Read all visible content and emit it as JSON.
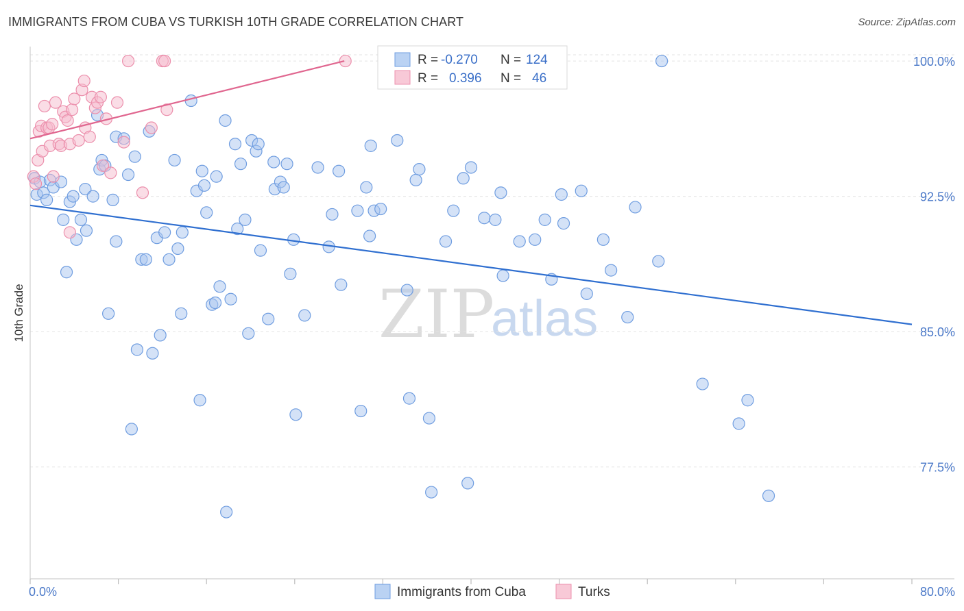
{
  "header": {
    "title": "IMMIGRANTS FROM CUBA VS TURKISH 10TH GRADE CORRELATION CHART",
    "source": "Source: ZipAtlas.com"
  },
  "watermark": {
    "zip": "ZIP",
    "atlas": "atlas"
  },
  "legend": {
    "cuba": {
      "r_label": "R =",
      "r_value": "-0.270",
      "n_label": "N =",
      "n_value": "124"
    },
    "turks": {
      "r_label": "R =",
      "r_value": "0.396",
      "n_label": "N =",
      "n_value": "46"
    }
  },
  "bottom_legend": {
    "cuba": "Immigrants from Cuba",
    "turks": "Turks"
  },
  "colors": {
    "cuba_fill": "#a9c6ef",
    "cuba_stroke": "#6f9de0",
    "cuba_line": "#2f6fd0",
    "turks_fill": "#f6bccd",
    "turks_stroke": "#ec8fac",
    "turks_line": "#e0668f",
    "grid": "#e3e3e3",
    "axis_label": "#4a78c8"
  },
  "chart_data": {
    "type": "scatter",
    "title": "IMMIGRANTS FROM CUBA VS TURKISH 10TH GRADE CORRELATION CHART",
    "xlabel": "",
    "ylabel": "10th Grade",
    "xlim": [
      0,
      80
    ],
    "ylim": [
      71.3,
      100.8
    ],
    "x_tick_labels": [
      "0.0%",
      "80.0%"
    ],
    "y_ticks": [
      77.5,
      85.0,
      92.5,
      100.0
    ],
    "y_tick_labels": [
      "77.5%",
      "85.0%",
      "92.5%",
      "100.0%"
    ],
    "grid": true,
    "series": [
      {
        "name": "Immigrants from Cuba",
        "r": -0.27,
        "n": 124,
        "trend": {
          "x": [
            0,
            80
          ],
          "y": [
            92.0,
            85.4
          ]
        },
        "points": [
          [
            0.4,
            93.5
          ],
          [
            0.6,
            92.6
          ],
          [
            0.9,
            93.3
          ],
          [
            1.2,
            92.7
          ],
          [
            1.5,
            92.3
          ],
          [
            1.8,
            93.4
          ],
          [
            2.1,
            93.0
          ],
          [
            2.8,
            93.3
          ],
          [
            3.0,
            91.2
          ],
          [
            3.3,
            88.3
          ],
          [
            3.6,
            92.2
          ],
          [
            3.9,
            92.5
          ],
          [
            4.2,
            90.1
          ],
          [
            4.6,
            91.2
          ],
          [
            5.0,
            92.9
          ],
          [
            5.1,
            90.6
          ],
          [
            5.7,
            92.5
          ],
          [
            6.1,
            97.0
          ],
          [
            6.3,
            94.0
          ],
          [
            6.5,
            94.5
          ],
          [
            6.8,
            94.2
          ],
          [
            7.1,
            86.0
          ],
          [
            7.5,
            92.3
          ],
          [
            7.8,
            95.8
          ],
          [
            7.8,
            90.0
          ],
          [
            8.5,
            95.7
          ],
          [
            8.9,
            93.7
          ],
          [
            9.2,
            79.6
          ],
          [
            9.5,
            94.7
          ],
          [
            9.7,
            84.0
          ],
          [
            10.1,
            89.0
          ],
          [
            10.5,
            89.0
          ],
          [
            10.8,
            96.1
          ],
          [
            11.1,
            83.8
          ],
          [
            11.5,
            90.2
          ],
          [
            11.8,
            84.8
          ],
          [
            12.2,
            90.5
          ],
          [
            12.6,
            89.0
          ],
          [
            13.1,
            94.5
          ],
          [
            13.4,
            89.6
          ],
          [
            13.7,
            86.0
          ],
          [
            13.8,
            90.5
          ],
          [
            14.6,
            97.8
          ],
          [
            15.1,
            92.8
          ],
          [
            15.4,
            81.2
          ],
          [
            15.6,
            93.9
          ],
          [
            15.8,
            93.1
          ],
          [
            16.0,
            91.6
          ],
          [
            16.5,
            86.5
          ],
          [
            16.8,
            86.6
          ],
          [
            16.9,
            93.6
          ],
          [
            17.2,
            87.5
          ],
          [
            17.7,
            96.7
          ],
          [
            17.8,
            75.0
          ],
          [
            18.2,
            86.8
          ],
          [
            18.6,
            95.4
          ],
          [
            18.8,
            90.7
          ],
          [
            19.1,
            94.3
          ],
          [
            19.5,
            91.2
          ],
          [
            19.8,
            84.9
          ],
          [
            20.1,
            95.6
          ],
          [
            20.5,
            95.0
          ],
          [
            20.7,
            95.4
          ],
          [
            20.9,
            89.5
          ],
          [
            21.6,
            85.7
          ],
          [
            22.1,
            94.4
          ],
          [
            22.2,
            92.9
          ],
          [
            22.7,
            93.3
          ],
          [
            23.0,
            93.0
          ],
          [
            23.3,
            94.3
          ],
          [
            23.6,
            88.2
          ],
          [
            23.9,
            90.1
          ],
          [
            24.1,
            80.4
          ],
          [
            24.9,
            85.9
          ],
          [
            26.1,
            94.1
          ],
          [
            27.1,
            89.7
          ],
          [
            27.4,
            91.5
          ],
          [
            28.0,
            93.9
          ],
          [
            28.2,
            87.6
          ],
          [
            29.7,
            91.7
          ],
          [
            30.0,
            80.6
          ],
          [
            30.5,
            93.0
          ],
          [
            30.8,
            90.3
          ],
          [
            30.9,
            95.3
          ],
          [
            31.2,
            91.7
          ],
          [
            31.8,
            91.8
          ],
          [
            33.3,
            95.6
          ],
          [
            34.2,
            87.3
          ],
          [
            34.4,
            81.3
          ],
          [
            35.0,
            93.4
          ],
          [
            35.3,
            94.0
          ],
          [
            36.2,
            80.2
          ],
          [
            36.4,
            76.1
          ],
          [
            37.7,
            90.0
          ],
          [
            38.4,
            91.7
          ],
          [
            39.3,
            93.5
          ],
          [
            39.7,
            76.6
          ],
          [
            40.0,
            94.1
          ],
          [
            41.2,
            91.3
          ],
          [
            42.2,
            91.2
          ],
          [
            42.7,
            92.7
          ],
          [
            42.9,
            88.1
          ],
          [
            44.4,
            90.0
          ],
          [
            45.8,
            90.1
          ],
          [
            46.7,
            91.2
          ],
          [
            47.3,
            87.9
          ],
          [
            48.2,
            92.6
          ],
          [
            48.4,
            91.0
          ],
          [
            50.0,
            92.8
          ],
          [
            50.5,
            87.1
          ],
          [
            52.0,
            90.1
          ],
          [
            52.7,
            88.4
          ],
          [
            54.2,
            85.8
          ],
          [
            54.9,
            91.9
          ],
          [
            57.0,
            88.9
          ],
          [
            57.3,
            100.0
          ],
          [
            61.0,
            82.1
          ],
          [
            64.3,
            79.9
          ],
          [
            65.1,
            81.2
          ],
          [
            67.0,
            75.9
          ]
        ]
      },
      {
        "name": "Turks",
        "r": 0.396,
        "n": 46,
        "trend": {
          "x": [
            0,
            28.5
          ],
          "y": [
            95.7,
            100.0
          ]
        },
        "points": [
          [
            0.3,
            93.6
          ],
          [
            0.5,
            93.2
          ],
          [
            0.7,
            94.5
          ],
          [
            0.8,
            96.1
          ],
          [
            1.0,
            96.4
          ],
          [
            1.1,
            95.0
          ],
          [
            1.3,
            97.5
          ],
          [
            1.5,
            96.3
          ],
          [
            1.7,
            96.3
          ],
          [
            1.8,
            95.3
          ],
          [
            2.0,
            96.5
          ],
          [
            2.3,
            97.7
          ],
          [
            2.1,
            93.6
          ],
          [
            2.6,
            95.4
          ],
          [
            2.8,
            95.3
          ],
          [
            3.0,
            97.2
          ],
          [
            3.2,
            96.9
          ],
          [
            3.4,
            96.7
          ],
          [
            3.6,
            95.4
          ],
          [
            3.6,
            90.5
          ],
          [
            3.8,
            97.3
          ],
          [
            4.0,
            97.9
          ],
          [
            4.4,
            95.6
          ],
          [
            4.7,
            98.4
          ],
          [
            4.9,
            98.9
          ],
          [
            5.0,
            96.3
          ],
          [
            5.4,
            95.8
          ],
          [
            5.6,
            98.0
          ],
          [
            5.9,
            97.4
          ],
          [
            6.1,
            97.7
          ],
          [
            6.4,
            98.0
          ],
          [
            6.6,
            94.2
          ],
          [
            6.9,
            96.8
          ],
          [
            7.3,
            93.8
          ],
          [
            7.9,
            97.7
          ],
          [
            8.5,
            95.5
          ],
          [
            8.9,
            100.0
          ],
          [
            10.2,
            92.7
          ],
          [
            11.0,
            96.3
          ],
          [
            12.0,
            100.0
          ],
          [
            12.2,
            100.0
          ],
          [
            12.4,
            97.3
          ],
          [
            28.6,
            100.0
          ]
        ]
      }
    ]
  }
}
